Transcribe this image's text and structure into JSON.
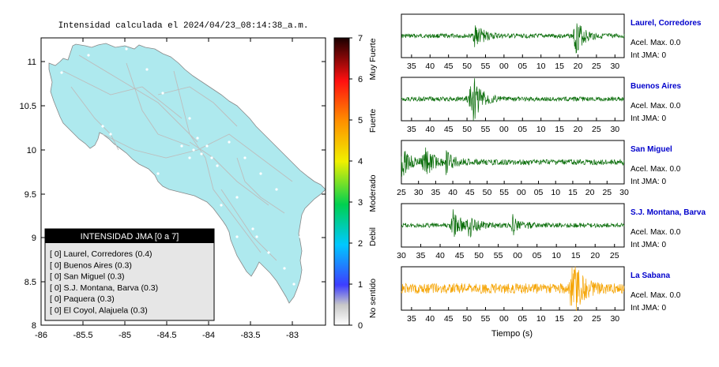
{
  "title": "Intensidad calculada el 2024/04/23_08:14:38_a.m.",
  "map": {
    "x_ticks": [
      "-86",
      "-85.5",
      "-85",
      "-84.5",
      "-84",
      "-83.5",
      "-83"
    ],
    "y_ticks": [
      "11",
      "10.5",
      "10",
      "9.5",
      "9",
      "8.5",
      "8"
    ],
    "land_color": "#aee9ee",
    "road_color": "#bdbdbd"
  },
  "legend": {
    "title": "INTENSIDAD JMA [0 a 7]",
    "items": [
      "[ 0]  Laurel, Corredores (0.4)",
      "[ 0]  Buenos Aires (0.3)",
      "[ 0]  San Miguel (0.3)",
      "[ 0]  S.J. Montana, Barva (0.3)",
      "[ 0]  Paquera (0.3)",
      "[ 0]  El Coyol, Alajuela (0.3)"
    ]
  },
  "colorbar": {
    "ticks": [
      "7",
      "6",
      "5",
      "4",
      "3",
      "2",
      "1",
      "0"
    ],
    "categories": [
      "Muy Fuerte",
      "Fuerte",
      "Moderado",
      "Debil",
      "No sentido"
    ]
  },
  "stations": [
    {
      "name": "Laurel, Corredores",
      "accel": "Acel. Max. 0.0",
      "jma": "Int JMA: 0",
      "color": "#0b6e0b",
      "ticks": [
        "35",
        "40",
        "45",
        "50",
        "55",
        "00",
        "05",
        "10",
        "15",
        "20",
        "25",
        "30"
      ],
      "bursts": [
        [
          0.33,
          0.7
        ],
        [
          0.78,
          1.0
        ]
      ],
      "noise": 0.12
    },
    {
      "name": "Buenos Aires",
      "accel": "Acel. Max. 0.0",
      "jma": "Int JMA: 0",
      "color": "#0b6e0b",
      "ticks": [
        "35",
        "40",
        "45",
        "50",
        "55",
        "00",
        "05",
        "10",
        "15",
        "20",
        "25",
        "30"
      ],
      "bursts": [
        [
          0.3,
          0.75
        ],
        [
          0.32,
          1.0
        ]
      ],
      "noise": 0.12
    },
    {
      "name": "San Miguel",
      "accel": "Acel. Max. 0.0",
      "jma": "Int JMA: 0",
      "color": "#0b6e0b",
      "ticks": [
        "25",
        "30",
        "35",
        "40",
        "45",
        "50",
        "55",
        "00",
        "05",
        "10",
        "15",
        "20",
        "25",
        "30"
      ],
      "bursts": [
        [
          0.0,
          0.8
        ],
        [
          0.1,
          0.9
        ],
        [
          0.2,
          0.5
        ]
      ],
      "noise": 0.15
    },
    {
      "name": "S.J. Montana, Barva",
      "accel": "Acel. Max. 0.0",
      "jma": "Int JMA: 0",
      "color": "#0b6e0b",
      "ticks": [
        "30",
        "35",
        "40",
        "45",
        "50",
        "55",
        "00",
        "05",
        "10",
        "15",
        "20",
        "25"
      ],
      "bursts": [
        [
          0.23,
          0.85
        ],
        [
          0.3,
          0.6
        ],
        [
          0.5,
          0.5
        ]
      ],
      "noise": 0.12
    },
    {
      "name": "La Sabana",
      "accel": "Acel. Max. 0.0",
      "jma": "Int JMA: 0",
      "color": "#f5a300",
      "ticks": [
        "35",
        "40",
        "45",
        "50",
        "55",
        "00",
        "05",
        "10",
        "15",
        "20",
        "25",
        "30"
      ],
      "bursts": [
        [
          0.76,
          1.0
        ],
        [
          0.78,
          0.6
        ]
      ],
      "noise": 0.28
    }
  ],
  "xlabel": "Tiempo (s)"
}
